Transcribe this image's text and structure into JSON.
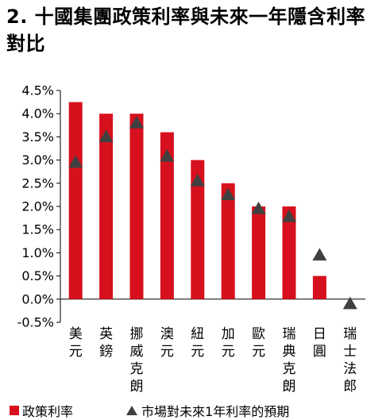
{
  "title": "2. 十國集團政策利率與未來一年隱含利率對比",
  "colors": {
    "bar": "#d7101d",
    "marker": "#404040",
    "axis": "#000000"
  },
  "legend": {
    "bar_label": "政策利率",
    "marker_label": "市場對未來1年利率的預期"
  },
  "chart_data": {
    "type": "bar",
    "title": "2. 十國集團政策利率與未來一年隱含利率對比",
    "xlabel": "",
    "ylabel": "",
    "categories": [
      "美元",
      "英鎊",
      "挪威克朗",
      "澳元",
      "紐元",
      "加元",
      "歐元",
      "瑞典克朗",
      "日圓",
      "瑞士法郎"
    ],
    "ylim": [
      -0.5,
      4.5
    ],
    "yticks": [
      "-0.5%",
      "0.0%",
      "0.5%",
      "1.0%",
      "1.5%",
      "2.0%",
      "2.5%",
      "3.0%",
      "3.5%",
      "4.0%",
      "4.5%"
    ],
    "grid": false,
    "legend_position": "bottom",
    "series": [
      {
        "name": "政策利率",
        "type": "bar",
        "values": [
          4.25,
          4.0,
          4.0,
          3.6,
          3.0,
          2.5,
          2.0,
          2.0,
          0.5,
          0.0
        ]
      },
      {
        "name": "市場對未來1年利率的預期",
        "type": "marker",
        "values": [
          2.95,
          3.5,
          3.8,
          3.08,
          2.55,
          2.25,
          1.95,
          1.78,
          0.95,
          -0.1
        ]
      }
    ]
  }
}
